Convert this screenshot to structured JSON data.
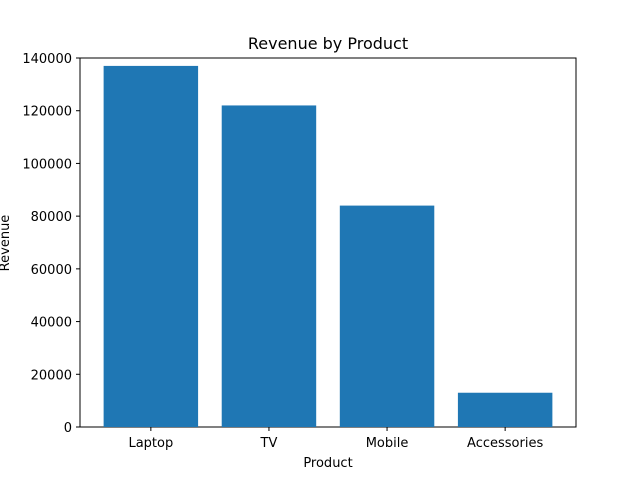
{
  "chart_data": {
    "type": "bar",
    "title": "Revenue by Product",
    "xlabel": "Product",
    "ylabel": "Revenue",
    "categories": [
      "Laptop",
      "TV",
      "Mobile",
      "Accessories"
    ],
    "values": [
      137000,
      122000,
      84000,
      13000
    ],
    "ylim": [
      0,
      140000
    ],
    "yticks": [
      0,
      20000,
      40000,
      60000,
      80000,
      100000,
      120000,
      140000
    ],
    "grid": false,
    "bar_color": "#1f77b4"
  }
}
